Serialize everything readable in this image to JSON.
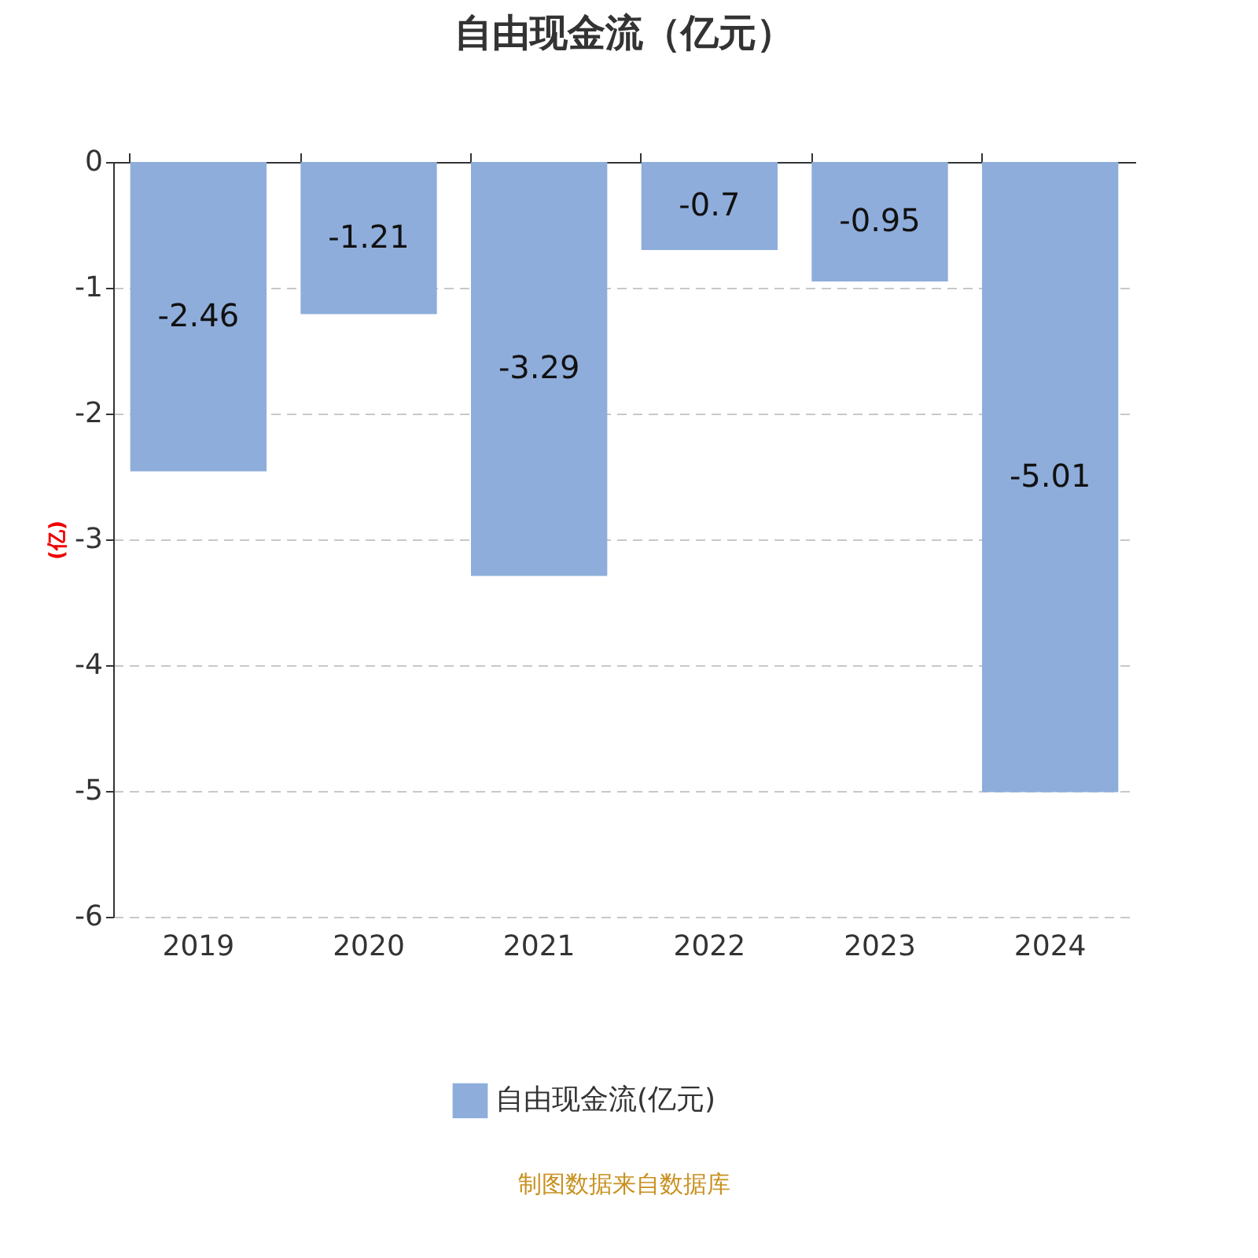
{
  "chart_data": {
    "type": "bar",
    "title": "自由现金流（亿元）",
    "ylabel": "(亿)",
    "categories": [
      "2019",
      "2020",
      "2021",
      "2022",
      "2023",
      "2024"
    ],
    "series": [
      {
        "name": "自由现金流(亿元)",
        "color": "#8eaddb",
        "values": [
          -2.46,
          -1.21,
          -3.29,
          -0.7,
          -0.95,
          -5.01
        ]
      }
    ],
    "ylim": [
      -6,
      0
    ],
    "yticks": [
      -6,
      -5,
      -4,
      -3,
      -2,
      -1,
      0
    ],
    "grid": "y",
    "legend": "bottom",
    "data_labels": true,
    "annotations": [
      "制图数据来自数据库"
    ]
  }
}
